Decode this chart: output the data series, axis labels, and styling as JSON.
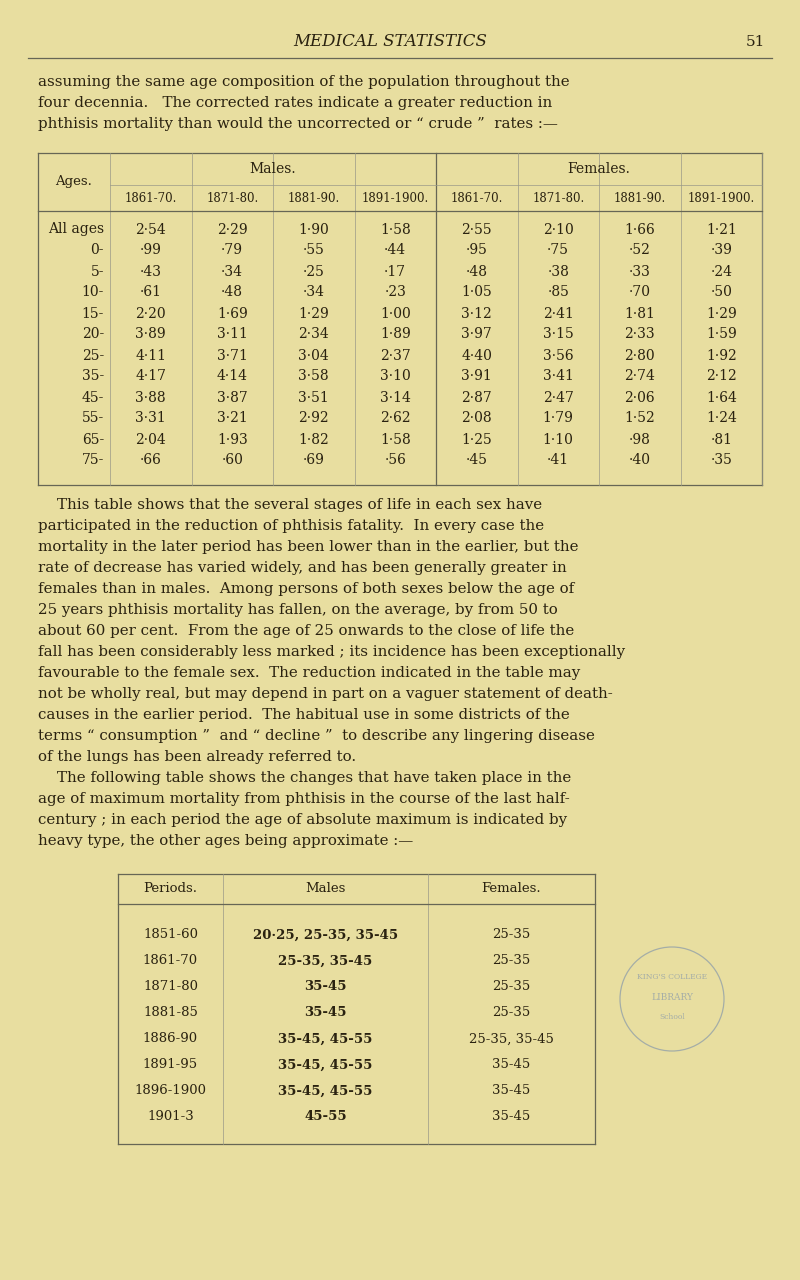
{
  "bg_color": "#e8dea0",
  "page_title": "MEDICAL STATISTICS",
  "page_number": "51",
  "intro_lines": [
    "assuming the same age composition of the population throughout the",
    "four decennia.   The corrected rates indicate a greater reduction in",
    "phthisis mortality than would the uncorrected or “ crude ”  rates :—"
  ],
  "table1_rows": [
    [
      "All ages",
      "2·54",
      "2·29",
      "1·90",
      "1·58",
      "2·55",
      "2·10",
      "1·66",
      "1·21"
    ],
    [
      "0-",
      "·99",
      "·79",
      "·55",
      "·44",
      "·95",
      "·75",
      "·52",
      "·39"
    ],
    [
      "5-",
      "·43",
      "·34",
      "·25",
      "·17",
      "·48",
      "·38",
      "·33",
      "·24"
    ],
    [
      "10-",
      "·61",
      "·48",
      "·34",
      "·23",
      "1·05",
      "·85",
      "·70",
      "·50"
    ],
    [
      "15-",
      "2·20",
      "1·69",
      "1·29",
      "1·00",
      "3·12",
      "2·41",
      "1·81",
      "1·29"
    ],
    [
      "20-",
      "3·89",
      "3·11",
      "2·34",
      "1·89",
      "3·97",
      "3·15",
      "2·33",
      "1·59"
    ],
    [
      "25-",
      "4·11",
      "3·71",
      "3·04",
      "2·37",
      "4·40",
      "3·56",
      "2·80",
      "1·92"
    ],
    [
      "35-",
      "4·17",
      "4·14",
      "3·58",
      "3·10",
      "3·91",
      "3·41",
      "2·74",
      "2·12"
    ],
    [
      "45-",
      "3·88",
      "3·87",
      "3·51",
      "3·14",
      "2·87",
      "2·47",
      "2·06",
      "1·64"
    ],
    [
      "55-",
      "3·31",
      "3·21",
      "2·92",
      "2·62",
      "2·08",
      "1·79",
      "1·52",
      "1·24"
    ],
    [
      "65-",
      "2·04",
      "1·93",
      "1·82",
      "1·58",
      "1·25",
      "1·10",
      "·98",
      "·81"
    ],
    [
      "75-",
      "·66",
      "·60",
      "·69",
      "·56",
      "·45",
      "·41",
      "·40",
      "·35"
    ]
  ],
  "table1_sub_headers": [
    "1861-70.",
    "1871-80.",
    "1881-90.",
    "1891-1900.",
    "1861-70.",
    "1871-80.",
    "1881-90.",
    "1891-1900."
  ],
  "body_lines": [
    "    This table shows that the several stages of life in each sex have",
    "participated in the reduction of phthisis fatality.  In every case the",
    "mortality in the later period has been lower than in the earlier, but the",
    "rate of decrease has varied widely, and has been generally greater in",
    "females than in males.  Among persons of both sexes below the age of",
    "25 years phthisis mortality has fallen, on the average, by from 50 to",
    "about 60 per cent.  From the age of 25 onwards to the close of life the",
    "fall has been considerably less marked ; its incidence has been exceptionally",
    "favourable to the female sex.  The reduction indicated in the table may",
    "not be wholly real, but may depend in part on a vaguer statement of death-",
    "causes in the earlier period.  The habitual use in some districts of the",
    "terms “ consumption ”  and “ decline ”  to describe any lingering disease",
    "of the lungs has been already referred to.",
    "    The following table shows the changes that have taken place in the",
    "age of maximum mortality from phthisis in the course of the last half-",
    "century ; in each period the age of absolute maximum is indicated by",
    "heavy type, the other ages being approximate :—"
  ],
  "table2_rows": [
    [
      "1851-60",
      "20·25, 25-35, 35-45",
      "25-35"
    ],
    [
      "1861-70",
      "25-35, 35-45",
      "25-35"
    ],
    [
      "1871-80",
      "35-45",
      "25-35"
    ],
    [
      "1881-85",
      "35-45",
      "25-35"
    ],
    [
      "1886-90",
      "35-45, 45-55",
      "25-35, 35-45"
    ],
    [
      "1891-95",
      "35-45, 45-55",
      "35-45"
    ],
    [
      "1896-1900",
      "35-45, 45-55",
      "35-45"
    ],
    [
      "1901-3",
      "45-55",
      "35-45"
    ]
  ],
  "text_color": "#2a2210",
  "line_color": "#666655",
  "light_line": "#999988"
}
